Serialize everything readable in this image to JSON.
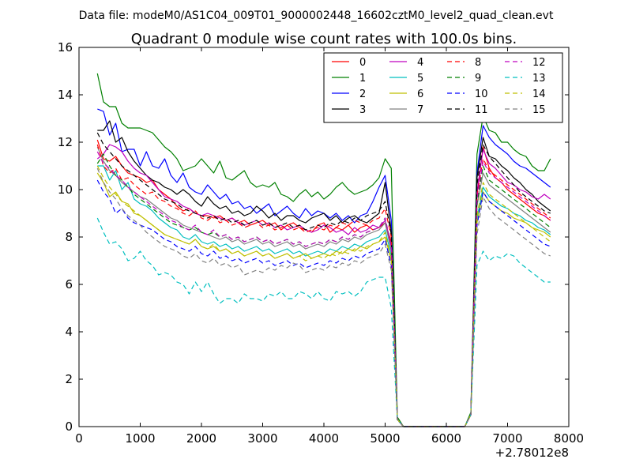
{
  "header": {
    "supertitle": "Data file: modeM0/AS1C04_009T01_9000002448_16602cztM0_level2_quad_clean.evt"
  },
  "chart_data": {
    "type": "line",
    "title": "Quadrant 0 module wise count rates with 100.0s bins.",
    "xlabel": "",
    "ylabel": "",
    "x_offset_label": "+2.78012e8",
    "xlim": [
      0,
      8000
    ],
    "ylim": [
      0,
      16
    ],
    "xticks": [
      0,
      1000,
      2000,
      3000,
      4000,
      5000,
      6000,
      7000,
      8000
    ],
    "yticks": [
      0,
      2,
      4,
      6,
      8,
      10,
      12,
      14,
      16
    ],
    "legend_position": "top-right",
    "legend_columns": 4,
    "x_first_segment": [
      300,
      400,
      500,
      600,
      700,
      800,
      900,
      1000,
      1100,
      1200,
      1300,
      1400,
      1500,
      1600,
      1700,
      1800,
      1900,
      2000,
      2100,
      2200,
      2300,
      2400,
      2500,
      2600,
      2700,
      2800,
      2900,
      3000,
      3100,
      3200,
      3300,
      3400,
      3500,
      3600,
      3700,
      3800,
      3900,
      4000,
      4100,
      4200,
      4300,
      4400,
      4500,
      4600,
      4700,
      4800,
      4900,
      5000,
      5100,
      5200
    ],
    "x_second_segment": [
      6400,
      6500,
      6600,
      6700,
      6800,
      6900,
      7000,
      7100,
      7200,
      7300,
      7400,
      7500,
      7600,
      7700
    ],
    "gap_range": [
      5200,
      6400
    ],
    "series": [
      {
        "name": "0",
        "color": "#ff0000",
        "dashed": false,
        "seg1": [
          12.1,
          11.3,
          11.2,
          11.4,
          11.0,
          10.7,
          10.6,
          10.5,
          10.3,
          10.4,
          10.0,
          9.8,
          9.6,
          9.3,
          9.1,
          9.2,
          9.0,
          8.9,
          8.9,
          8.8,
          8.9,
          8.7,
          8.8,
          8.6,
          8.7,
          8.5,
          8.6,
          8.7,
          8.5,
          8.6,
          8.3,
          8.5,
          8.6,
          8.4,
          8.3,
          8.2,
          8.5,
          8.6,
          8.2,
          8.4,
          8.3,
          8.5,
          8.2,
          8.4,
          8.5,
          8.3,
          8.4,
          8.6,
          7.8,
          0.3
        ],
        "seg2": [
          0.5,
          9.8,
          11.8,
          10.9,
          10.5,
          10.3,
          10.0,
          9.8,
          9.6,
          9.4,
          9.2,
          9.0,
          8.9,
          8.7
        ]
      },
      {
        "name": "1",
        "color": "#008000",
        "dashed": false,
        "seg1": [
          14.9,
          13.7,
          13.5,
          13.5,
          12.8,
          12.6,
          12.6,
          12.6,
          12.5,
          12.4,
          12.1,
          11.8,
          11.6,
          11.3,
          10.8,
          10.9,
          11.0,
          11.3,
          11.0,
          10.7,
          11.2,
          10.5,
          10.4,
          10.6,
          10.8,
          10.3,
          10.1,
          10.2,
          10.1,
          10.3,
          9.8,
          9.7,
          9.5,
          9.8,
          10.0,
          9.7,
          9.9,
          9.6,
          9.8,
          10.1,
          10.3,
          10.0,
          9.8,
          9.9,
          10.0,
          10.2,
          10.5,
          11.3,
          10.9,
          0.4
        ],
        "seg2": [
          0.6,
          11.5,
          13.1,
          12.5,
          12.4,
          12.0,
          12.0,
          11.7,
          11.5,
          11.4,
          11.0,
          10.8,
          10.8,
          11.3
        ]
      },
      {
        "name": "2",
        "color": "#0000ff",
        "dashed": false,
        "seg1": [
          13.4,
          13.3,
          12.3,
          12.8,
          11.6,
          11.7,
          11.7,
          11.0,
          11.6,
          11.0,
          10.9,
          11.3,
          10.6,
          10.3,
          10.7,
          10.1,
          9.9,
          9.8,
          10.2,
          9.9,
          9.6,
          9.8,
          9.4,
          9.5,
          9.2,
          9.3,
          9.0,
          9.2,
          9.4,
          8.9,
          9.1,
          9.3,
          9.0,
          8.8,
          9.2,
          8.9,
          9.1,
          9.0,
          8.8,
          9.0,
          8.7,
          8.9,
          8.6,
          8.9,
          9.0,
          9.5,
          10.1,
          10.6,
          8.7,
          0.3
        ],
        "seg2": [
          0.5,
          10.7,
          12.7,
          12.2,
          11.9,
          11.7,
          11.5,
          11.2,
          11.0,
          10.9,
          10.7,
          10.5,
          10.3,
          10.1
        ]
      },
      {
        "name": "3",
        "color": "#000000",
        "dashed": false,
        "seg1": [
          12.5,
          12.5,
          12.9,
          12.0,
          12.2,
          11.6,
          11.2,
          10.9,
          10.6,
          10.4,
          10.3,
          10.1,
          10.0,
          9.8,
          10.0,
          9.8,
          9.5,
          9.3,
          9.7,
          9.4,
          9.2,
          9.3,
          9.0,
          9.1,
          8.9,
          9.0,
          9.3,
          9.1,
          8.8,
          9.0,
          8.7,
          8.9,
          8.9,
          8.7,
          8.6,
          8.8,
          8.9,
          9.0,
          8.7,
          8.9,
          8.6,
          8.8,
          8.9,
          8.7,
          8.6,
          8.8,
          9.0,
          10.3,
          8.2,
          0.3
        ],
        "seg2": [
          0.5,
          10.5,
          12.2,
          11.4,
          11.3,
          11.0,
          10.8,
          10.5,
          10.3,
          10.0,
          9.8,
          9.5,
          9.3,
          9.1
        ]
      },
      {
        "name": "4",
        "color": "#bf00bf",
        "dashed": false,
        "seg1": [
          11.3,
          11.5,
          11.9,
          11.8,
          11.6,
          11.2,
          10.9,
          10.7,
          10.6,
          10.3,
          10.0,
          9.7,
          9.6,
          9.5,
          9.3,
          9.2,
          9.0,
          8.9,
          9.0,
          8.9,
          8.8,
          8.7,
          8.8,
          8.6,
          8.5,
          8.6,
          8.7,
          8.5,
          8.6,
          8.4,
          8.5,
          8.3,
          8.4,
          8.5,
          8.3,
          8.2,
          8.3,
          8.5,
          8.4,
          8.2,
          8.3,
          8.1,
          8.4,
          8.2,
          8.3,
          8.5,
          8.4,
          8.7,
          7.6,
          0.3
        ],
        "seg2": [
          0.5,
          9.9,
          11.7,
          11.1,
          10.9,
          10.6,
          10.3,
          10.2,
          10.0,
          9.9,
          9.7,
          9.6,
          9.8,
          9.6
        ]
      },
      {
        "name": "5",
        "color": "#00bfbf",
        "dashed": false,
        "seg1": [
          11.0,
          11.0,
          10.4,
          10.8,
          10.0,
          10.3,
          9.6,
          9.4,
          9.3,
          9.1,
          8.8,
          8.6,
          8.4,
          8.3,
          8.0,
          7.9,
          8.1,
          7.8,
          7.7,
          7.8,
          7.6,
          7.7,
          7.5,
          7.6,
          7.4,
          7.5,
          7.6,
          7.4,
          7.5,
          7.3,
          7.4,
          7.5,
          7.3,
          7.4,
          7.2,
          7.3,
          7.4,
          7.3,
          7.5,
          7.4,
          7.6,
          7.5,
          7.7,
          7.6,
          7.8,
          7.9,
          8.0,
          8.3,
          7.2,
          0.3
        ],
        "seg2": [
          0.5,
          8.8,
          10.1,
          9.7,
          9.5,
          9.3,
          9.2,
          9.0,
          8.9,
          8.7,
          8.6,
          8.4,
          8.3,
          8.1
        ]
      },
      {
        "name": "6",
        "color": "#bfbf00",
        "dashed": false,
        "seg1": [
          10.7,
          10.3,
          9.7,
          9.9,
          9.5,
          9.4,
          9.0,
          8.9,
          8.7,
          8.5,
          8.3,
          8.1,
          8.0,
          7.9,
          7.8,
          7.7,
          7.9,
          7.6,
          7.5,
          7.6,
          7.4,
          7.5,
          7.3,
          7.4,
          7.2,
          7.3,
          7.4,
          7.2,
          7.3,
          7.1,
          7.2,
          7.3,
          7.1,
          7.2,
          7.3,
          7.1,
          7.2,
          7.3,
          7.2,
          7.4,
          7.3,
          7.5,
          7.4,
          7.6,
          7.5,
          7.7,
          7.8,
          8.0,
          7.0,
          0.3
        ],
        "seg2": [
          0.5,
          8.6,
          9.9,
          9.5,
          9.3,
          9.1,
          9.0,
          8.8,
          8.7,
          8.6,
          8.4,
          8.3,
          8.2,
          8.0
        ]
      },
      {
        "name": "7",
        "color": "#808080",
        "dashed": false,
        "seg1": [
          11.8,
          11.2,
          10.8,
          10.6,
          10.3,
          10.1,
          9.9,
          9.7,
          9.6,
          9.4,
          9.2,
          9.0,
          8.8,
          8.7,
          8.5,
          8.4,
          8.3,
          8.2,
          8.1,
          8.0,
          7.9,
          8.0,
          7.8,
          7.9,
          7.7,
          7.8,
          7.9,
          7.7,
          7.8,
          7.6,
          7.7,
          7.8,
          7.6,
          7.7,
          7.5,
          7.6,
          7.7,
          7.6,
          7.8,
          7.7,
          7.9,
          7.8,
          8.0,
          7.9,
          8.1,
          8.2,
          8.3,
          8.6,
          7.4,
          0.3
        ],
        "seg2": [
          0.5,
          9.3,
          10.7,
          10.2,
          10.0,
          9.8,
          9.6,
          9.4,
          9.2,
          9.0,
          8.8,
          8.6,
          8.4,
          8.2
        ]
      },
      {
        "name": "8",
        "color": "#ff0000",
        "dashed": true,
        "seg1": [
          11.9,
          11.0,
          10.7,
          10.9,
          10.4,
          10.5,
          10.2,
          10.0,
          9.8,
          9.9,
          9.6,
          9.5,
          9.3,
          9.2,
          9.0,
          8.9,
          9.1,
          8.8,
          8.7,
          8.9,
          8.6,
          8.7,
          8.5,
          8.6,
          8.4,
          8.5,
          8.6,
          8.4,
          8.5,
          8.3,
          8.4,
          8.5,
          8.3,
          8.4,
          8.2,
          8.3,
          8.4,
          8.3,
          8.5,
          8.4,
          8.6,
          8.5,
          8.7,
          8.6,
          8.5,
          8.7,
          8.8,
          9.2,
          8.0,
          0.3
        ],
        "seg2": [
          0.5,
          9.7,
          11.3,
          10.8,
          10.6,
          10.4,
          10.2,
          10.0,
          9.8,
          9.6,
          9.4,
          9.2,
          9.0,
          8.8
        ]
      },
      {
        "name": "9",
        "color": "#008000",
        "dashed": true,
        "seg1": [
          11.1,
          11.5,
          11.0,
          10.6,
          10.4,
          10.1,
          9.8,
          9.6,
          9.4,
          9.2,
          9.0,
          8.8,
          8.6,
          8.5,
          8.4,
          8.3,
          8.4,
          8.2,
          8.1,
          8.2,
          8.0,
          8.1,
          7.9,
          8.0,
          7.8,
          7.9,
          8.0,
          7.8,
          7.9,
          7.7,
          7.8,
          7.9,
          7.7,
          7.8,
          7.6,
          7.7,
          7.8,
          7.7,
          7.9,
          7.8,
          8.0,
          7.9,
          8.1,
          8.0,
          8.2,
          8.3,
          8.4,
          8.8,
          7.6,
          0.3
        ],
        "seg2": [
          0.5,
          9.4,
          11.0,
          10.4,
          10.2,
          10.0,
          9.8,
          9.6,
          9.4,
          9.2,
          9.0,
          8.8,
          8.6,
          8.4
        ]
      },
      {
        "name": "10",
        "color": "#0000ff",
        "dashed": true,
        "seg1": [
          10.4,
          9.9,
          9.6,
          9.0,
          9.2,
          8.8,
          8.6,
          8.5,
          8.4,
          8.3,
          8.1,
          7.9,
          7.8,
          7.6,
          7.5,
          7.4,
          7.6,
          7.3,
          7.2,
          7.4,
          7.1,
          7.2,
          7.0,
          7.1,
          6.9,
          7.0,
          7.1,
          6.9,
          7.0,
          6.8,
          6.9,
          7.0,
          6.8,
          6.9,
          6.7,
          6.8,
          6.9,
          6.8,
          7.0,
          6.9,
          7.1,
          7.0,
          7.2,
          7.1,
          7.3,
          7.4,
          7.5,
          7.9,
          6.8,
          0.3
        ],
        "seg2": [
          0.5,
          8.5,
          9.9,
          9.5,
          9.3,
          9.1,
          8.9,
          8.7,
          8.5,
          8.3,
          8.1,
          7.9,
          7.7,
          7.6
        ]
      },
      {
        "name": "11",
        "color": "#000000",
        "dashed": true,
        "seg1": [
          12.4,
          11.9,
          11.6,
          11.3,
          11.0,
          10.8,
          10.6,
          10.4,
          10.2,
          10.0,
          9.8,
          9.6,
          9.5,
          9.4,
          9.2,
          9.1,
          9.0,
          8.9,
          8.8,
          8.9,
          8.7,
          8.8,
          8.6,
          8.7,
          8.5,
          8.6,
          8.7,
          8.5,
          8.6,
          8.4,
          8.5,
          8.6,
          8.4,
          8.5,
          8.3,
          8.4,
          8.5,
          8.4,
          8.6,
          8.5,
          8.7,
          8.6,
          8.8,
          8.7,
          8.9,
          9.0,
          9.1,
          9.5,
          8.1,
          0.3
        ],
        "seg2": [
          0.5,
          10.2,
          11.9,
          11.4,
          11.1,
          10.8,
          10.5,
          10.2,
          9.9,
          9.7,
          9.5,
          9.3,
          9.1,
          9.0
        ]
      },
      {
        "name": "12",
        "color": "#bf00bf",
        "dashed": true,
        "seg1": [
          11.6,
          11.1,
          10.9,
          10.6,
          10.4,
          10.1,
          9.9,
          9.7,
          9.5,
          9.3,
          9.1,
          8.9,
          8.7,
          8.6,
          8.4,
          8.3,
          8.5,
          8.2,
          8.1,
          8.3,
          8.0,
          8.1,
          7.9,
          8.0,
          7.8,
          7.9,
          8.0,
          7.8,
          7.9,
          7.7,
          7.8,
          7.9,
          7.7,
          7.8,
          7.6,
          7.7,
          7.8,
          7.7,
          7.9,
          7.8,
          8.0,
          7.9,
          8.1,
          8.0,
          8.2,
          8.3,
          8.4,
          8.8,
          7.6,
          0.3
        ],
        "seg2": [
          0.5,
          9.6,
          11.2,
          10.7,
          10.5,
          10.3,
          10.1,
          9.9,
          9.7,
          9.5,
          9.3,
          9.1,
          8.9,
          8.7
        ]
      },
      {
        "name": "13",
        "color": "#00bfbf",
        "dashed": true,
        "seg1": [
          8.8,
          8.2,
          7.7,
          7.8,
          7.5,
          7.0,
          7.1,
          7.4,
          7.0,
          6.8,
          6.4,
          6.5,
          6.4,
          6.1,
          6.0,
          5.6,
          6.1,
          5.7,
          6.1,
          5.6,
          5.2,
          5.4,
          5.4,
          5.2,
          5.6,
          5.4,
          5.4,
          5.3,
          5.6,
          5.5,
          5.7,
          5.4,
          5.4,
          5.7,
          5.6,
          5.4,
          5.7,
          5.4,
          5.3,
          5.7,
          5.6,
          5.7,
          5.5,
          5.7,
          6.1,
          6.2,
          6.3,
          6.3,
          5.0,
          0.3
        ],
        "seg2": [
          0.5,
          6.8,
          7.4,
          7.0,
          7.2,
          7.1,
          7.3,
          7.2,
          6.9,
          6.7,
          6.5,
          6.3,
          6.1,
          6.1
        ]
      },
      {
        "name": "14",
        "color": "#bfbf00",
        "dashed": true,
        "seg1": [
          11.0,
          10.5,
          10.1,
          9.8,
          9.5,
          9.3,
          9.1,
          8.9,
          8.7,
          8.5,
          8.3,
          8.1,
          8.0,
          7.9,
          7.8,
          7.7,
          7.9,
          7.6,
          7.5,
          7.7,
          7.4,
          7.5,
          7.3,
          7.4,
          7.2,
          7.3,
          7.4,
          7.2,
          7.3,
          7.1,
          7.2,
          7.3,
          7.1,
          7.2,
          7.0,
          7.1,
          7.2,
          7.1,
          7.3,
          7.2,
          7.4,
          7.3,
          7.5,
          7.4,
          7.6,
          7.7,
          7.8,
          8.2,
          7.0,
          0.3
        ],
        "seg2": [
          0.5,
          8.9,
          10.3,
          9.8,
          9.6,
          9.4,
          9.2,
          9.0,
          8.8,
          8.6,
          8.4,
          8.2,
          8.0,
          7.8
        ]
      },
      {
        "name": "15",
        "color": "#808080",
        "dashed": true,
        "seg1": [
          10.9,
          10.3,
          9.9,
          9.6,
          9.2,
          8.9,
          8.7,
          8.5,
          8.2,
          8.0,
          7.8,
          7.6,
          7.5,
          7.4,
          7.2,
          7.1,
          7.3,
          7.0,
          6.9,
          7.1,
          6.8,
          6.9,
          6.7,
          6.8,
          6.4,
          6.5,
          6.6,
          6.5,
          6.7,
          6.6,
          6.8,
          6.7,
          6.9,
          6.8,
          6.5,
          6.6,
          6.7,
          6.6,
          6.8,
          6.7,
          6.9,
          6.8,
          7.0,
          6.9,
          7.1,
          7.2,
          7.3,
          7.7,
          6.6,
          0.3
        ],
        "seg2": [
          0.5,
          8.1,
          9.7,
          9.2,
          8.9,
          8.7,
          8.5,
          8.3,
          8.1,
          7.9,
          7.7,
          7.5,
          7.3,
          7.2
        ]
      }
    ]
  }
}
